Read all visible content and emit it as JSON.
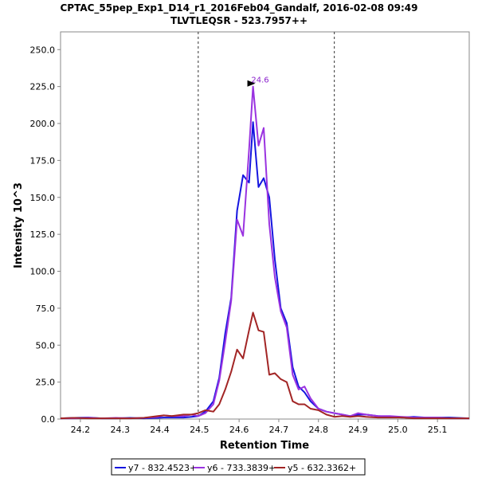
{
  "chart_data": {
    "type": "line",
    "title": "CPTAC_55pep_Exp1_D14_r1_2016Feb04_Gandalf, 2016-02-08 09:49",
    "subtitle": "TLVTLEQSR - 523.7957++",
    "xlabel": "Retention Time",
    "ylabel": "Intensity 10^3",
    "xlim": [
      24.15,
      25.18
    ],
    "ylim": [
      0,
      262
    ],
    "x_ticks": [
      24.2,
      24.3,
      24.4,
      24.5,
      24.6,
      24.7,
      24.8,
      24.9,
      25.0,
      25.1
    ],
    "x_tick_labels": [
      "24.2",
      "24.3",
      "24.4",
      "24.5",
      "24.6",
      "24.7",
      "24.8",
      "24.9",
      "25.0",
      "25.1"
    ],
    "y_ticks": [
      0,
      25,
      50,
      75,
      100,
      125,
      150,
      175,
      200,
      225,
      250
    ],
    "y_tick_labels": [
      "0.0",
      "25.0",
      "50.0",
      "75.0",
      "100.0",
      "125.0",
      "150.0",
      "175.0",
      "200.0",
      "225.0",
      "250.0"
    ],
    "vlines": [
      24.497,
      24.84
    ],
    "annotation": {
      "text": "24.6",
      "x": 24.649,
      "y": 225.5,
      "color": "#8B22CC"
    },
    "legend_position": "bottom",
    "x": [
      24.15,
      24.185,
      24.22,
      24.255,
      24.29,
      24.325,
      24.36,
      24.395,
      24.41,
      24.43,
      24.46,
      24.48,
      24.497,
      24.515,
      24.535,
      24.55,
      24.565,
      24.58,
      24.595,
      24.61,
      24.625,
      24.635,
      24.649,
      24.662,
      24.676,
      24.69,
      24.705,
      24.72,
      24.735,
      24.75,
      24.765,
      24.78,
      24.8,
      24.82,
      24.84,
      24.86,
      24.88,
      24.9,
      24.92,
      24.95,
      24.98,
      25.01,
      25.04,
      25.07,
      25.1,
      25.13,
      25.18
    ],
    "series": [
      {
        "name": "y7 - 832.4523+",
        "color": "#1515E0",
        "values": [
          0.5,
          0.8,
          1,
          0.5,
          0.5,
          0.8,
          0.5,
          0.8,
          1,
          1,
          1,
          1.5,
          2,
          5,
          12,
          28,
          58,
          82,
          141,
          165,
          160,
          201,
          157,
          163,
          150,
          108,
          75,
          65,
          35,
          22,
          18,
          12,
          7,
          5,
          4,
          3,
          2,
          3,
          3,
          2,
          1.5,
          1,
          1.5,
          1,
          1,
          1,
          0.5
        ]
      },
      {
        "name": "y6 - 733.3839+",
        "color": "#9A33E0",
        "values": [
          0.5,
          0.5,
          0.8,
          0.5,
          0.8,
          0.5,
          0.8,
          1.5,
          2.5,
          2,
          2,
          3,
          2,
          4,
          10,
          26,
          52,
          80,
          135,
          124,
          182,
          225,
          185,
          197,
          132,
          96,
          73,
          62,
          30,
          20,
          22,
          14,
          7,
          5,
          4,
          3,
          2,
          4,
          3,
          2,
          2,
          1.5,
          1,
          1,
          1,
          0.5,
          0.5
        ]
      },
      {
        "name": "y5 - 632.3362+",
        "color": "#A22525",
        "values": [
          0.5,
          0.8,
          0.5,
          0.5,
          0.5,
          0.5,
          0.8,
          2,
          2.5,
          2,
          3,
          3,
          4,
          6,
          5,
          10,
          20,
          32,
          47,
          41,
          60,
          72,
          60,
          59,
          30,
          31,
          27,
          25,
          12,
          10,
          10,
          7,
          6,
          3,
          1.5,
          2,
          1.5,
          2,
          1.5,
          1,
          1,
          1,
          0.5,
          0.5,
          0.5,
          0.5,
          0.5
        ]
      }
    ]
  }
}
